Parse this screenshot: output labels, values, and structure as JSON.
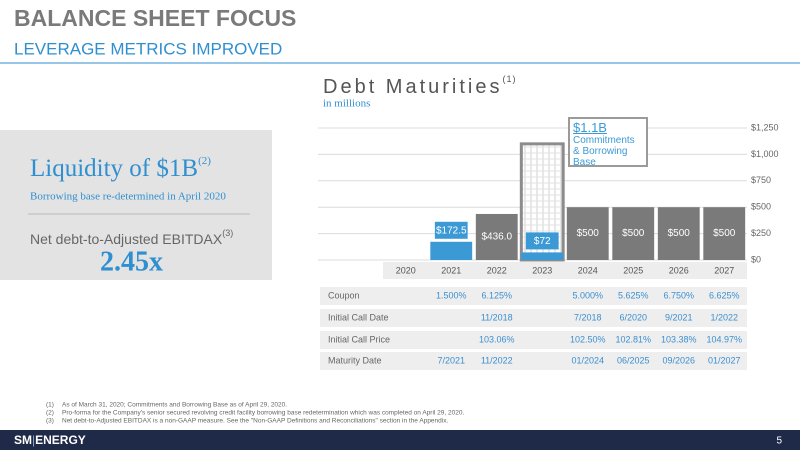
{
  "header": {
    "title": "BALANCE SHEET FOCUS",
    "subtitle": "LEVERAGE METRICS IMPROVED"
  },
  "liquidity": {
    "title": "Liquidity of $1B",
    "title_sup": "(2)",
    "note": "Borrowing base re-determined in April 2020",
    "metric_label": "Net debt-to-Adjusted EBITDAX",
    "metric_sup": "(3)",
    "metric_value": "2.45x"
  },
  "chart_data": {
    "type": "bar",
    "title": "Debt Maturities",
    "title_sup": "(1)",
    "subtitle": "in millions",
    "categories": [
      "2020",
      "2021",
      "2022",
      "2023",
      "2024",
      "2025",
      "2026",
      "2027"
    ],
    "series": [
      {
        "values": [
          null,
          172.5,
          436.0,
          72,
          500,
          500,
          500,
          500
        ],
        "value_labels": [
          null,
          "$172.5",
          "$436.0",
          "$72",
          "$500",
          "$500",
          "$500",
          "$500"
        ],
        "colors": [
          null,
          "#3b9ad6",
          "#7a7a7a",
          "#3b9ad6",
          "#7a7a7a",
          "#7a7a7a",
          "#7a7a7a",
          "#7a7a7a"
        ]
      },
      {
        "name": "Commitments & Borrowing Base",
        "color": "#8c8c8c",
        "values": [
          null,
          null,
          null,
          1100,
          null,
          null,
          null,
          null
        ],
        "value_labels": [
          null,
          null,
          null,
          "$1.1B",
          null,
          null,
          null,
          null
        ]
      }
    ],
    "ylim": [
      0,
      1250
    ],
    "yticks": [
      {
        "value": 0,
        "label": "$0"
      },
      {
        "value": 250,
        "label": "$250"
      },
      {
        "value": 500,
        "label": "$500"
      },
      {
        "value": 750,
        "label": "$750"
      },
      {
        "value": 1000,
        "label": "$1,000"
      },
      {
        "value": 1250,
        "label": "$1,250"
      }
    ],
    "grid": true
  },
  "table": {
    "rows": [
      {
        "label": "Coupon",
        "cells": [
          null,
          "1.500%",
          "6.125%",
          null,
          "5.000%",
          "5.625%",
          "6.750%",
          "6.625%"
        ]
      },
      {
        "label": "Initial Call Date",
        "cells": [
          null,
          null,
          "11/2018",
          null,
          "7/2018",
          "6/2020",
          "9/2021",
          "1/2022"
        ]
      },
      {
        "label": "Initial Call Price",
        "cells": [
          null,
          null,
          "103.06%",
          null,
          "102.50%",
          "102.81%",
          "103.38%",
          "104.97%"
        ]
      },
      {
        "label": "Maturity Date",
        "cells": [
          null,
          "7/2021",
          "11/2022",
          null,
          "01/2024",
          "06/2025",
          "09/2026",
          "01/2027"
        ]
      }
    ]
  },
  "footnotes": [
    {
      "marker": "(1)",
      "text": "As of March 31, 2020; Commitments and Borrowing Base as of April 29, 2020."
    },
    {
      "marker": "(2)",
      "text": "Pro-forma for the Company's senior secured revolving credit facility borrowing base redetermination which was completed on April 29, 2020."
    },
    {
      "marker": "(3)",
      "text": "Net debt-to-Adjusted EBITDAX is a non-GAAP measure. See the \"Non-GAAP Definitions and Reconciliations\" section in the Appendix."
    }
  ],
  "footer": {
    "logo_left": "SM",
    "logo_right": "ENERGY",
    "page": "5"
  }
}
